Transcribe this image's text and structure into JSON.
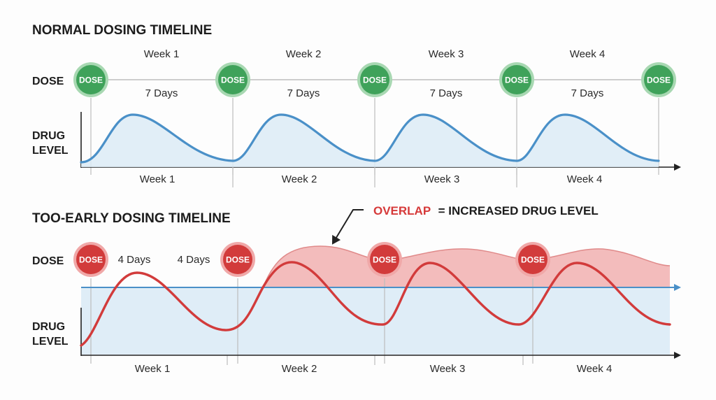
{
  "colors": {
    "green": "#3fa25a",
    "green_ring": "#a8d8b2",
    "red": "#d23b3b",
    "red_ring": "#f0a8a8",
    "blue_line": "#4a90c8",
    "blue_fill": "#dcebf6",
    "red_fill": "#f2b5b5",
    "axis": "#222222",
    "guide": "#bdbdbd"
  },
  "normal": {
    "title": "NORMAL DOSING TIMELINE",
    "dose_row_label": "DOSE",
    "level_label_1": "DRUG",
    "level_label_2": "LEVEL",
    "dose_badge": "DOSE",
    "week_labels_top": [
      "Week 1",
      "Week 2",
      "Week 3",
      "Week 4"
    ],
    "interval_labels": [
      "7 Days",
      "7 Days",
      "7 Days",
      "7 Days"
    ],
    "week_labels_bottom": [
      "Week 1",
      "Week 2",
      "Week 3",
      "Week 4"
    ]
  },
  "early": {
    "title": "TOO-EARLY DOSING TIMELINE",
    "dose_row_label": "DOSE",
    "level_label_1": "DRUG",
    "level_label_2": "LEVEL",
    "dose_badge": "DOSE",
    "interval_labels": [
      "4 Days",
      "4 Days"
    ],
    "week_labels_bottom": [
      "Week 1",
      "Week 2",
      "Week 3",
      "Week 4"
    ],
    "overlap_word": "OVERLAP",
    "overlap_rest": "= INCREASED DRUG LEVEL"
  }
}
